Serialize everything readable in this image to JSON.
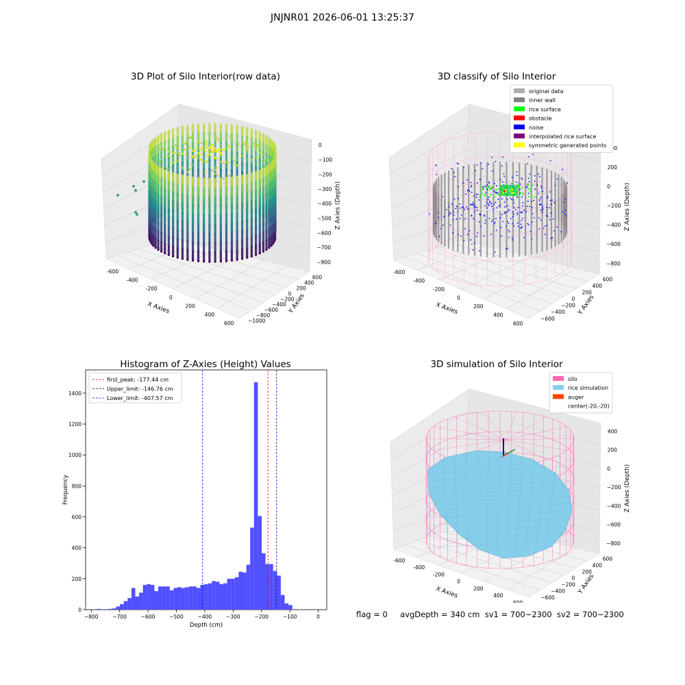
{
  "suptitle": "JNJNR01 2026-06-01 13:25:37",
  "chart_data": [
    {
      "type": "scatter",
      "title": "3D Plot of Silo Interior(row data)",
      "xlabel": "X Axies",
      "ylabel": "Y Axies",
      "zlabel": "Z Axies (Depth)",
      "x_ticks": [
        "-600",
        "-400",
        "-200",
        "0",
        "200",
        "400",
        "600"
      ],
      "y_ticks": [
        "600",
        "400",
        "200",
        "0",
        "−200",
        "−400",
        "−600",
        "−800",
        "−1000"
      ],
      "z_ticks": [
        "0",
        "−100",
        "−200",
        "−300",
        "−400",
        "−500",
        "−600",
        "−700",
        "−800"
      ],
      "xlim": [
        -700,
        600
      ],
      "ylim": [
        -1000,
        600
      ],
      "zlim": [
        -850,
        50
      ],
      "colormap": "viridis",
      "silo": {
        "cx": 0,
        "cy": -150,
        "radius": 560,
        "z_top": -170,
        "z_bottom": -800
      }
    },
    {
      "type": "scatter",
      "title": "3D classify of Silo Interior",
      "xlabel": "X Axies",
      "ylabel": "Y Axies",
      "zlabel": "Z Axies (Depth)",
      "x_ticks": [
        "-600",
        "-400",
        "-200",
        "0",
        "200",
        "400",
        "600"
      ],
      "y_ticks": [
        "600",
        "400",
        "200",
        "0",
        "−200",
        "−400",
        "−600"
      ],
      "z_ticks": [
        "400",
        "200",
        "0",
        "−200",
        "−400",
        "−600",
        "−800"
      ],
      "xlim": [
        -700,
        600
      ],
      "ylim": [
        -700,
        700
      ],
      "zlim": [
        -900,
        450
      ],
      "legend": [
        {
          "label": "original data",
          "color": "#b0b0b0"
        },
        {
          "label": "inner wall",
          "color": "#808080"
        },
        {
          "label": "rice surface",
          "color": "#00ff00"
        },
        {
          "label": "obstacle",
          "color": "#ff0000"
        },
        {
          "label": "noise",
          "color": "#0000ff"
        },
        {
          "label": "interpolated rice surface",
          "color": "#800080"
        },
        {
          "label": "symmetric generated points",
          "color": "#ffff00"
        }
      ],
      "legend_loc": "upper right"
    },
    {
      "type": "histogram",
      "title": "Histogram of Z-Axies (Height) Values",
      "xlabel": "Depth (cm)",
      "ylabel": "Frequency",
      "bar_color": "#5050ff",
      "xlim": [
        -820,
        30
      ],
      "ylim": [
        0,
        1550
      ],
      "x_ticks": [
        -800,
        -700,
        -600,
        -500,
        -400,
        -300,
        -200,
        -100,
        0
      ],
      "y_ticks": [
        0,
        200,
        400,
        600,
        800,
        1000,
        1200,
        1400
      ],
      "bin_start": -780,
      "bin_width": 13.5,
      "counts": [
        5,
        3,
        0,
        5,
        8,
        20,
        35,
        55,
        75,
        140,
        85,
        110,
        160,
        165,
        160,
        120,
        150,
        150,
        150,
        125,
        140,
        145,
        140,
        145,
        150,
        150,
        140,
        160,
        165,
        170,
        185,
        180,
        165,
        170,
        200,
        200,
        210,
        245,
        240,
        290,
        530,
        1470,
        605,
        365,
        295,
        295,
        250,
        220,
        95,
        40,
        30
      ],
      "lines": [
        {
          "label": "first_peak: -177.44 cm",
          "value": -177.44,
          "color": "#ff0000"
        },
        {
          "label": "Upper_limit: -146.76 cm",
          "value": -146.76,
          "color": "#00008b"
        },
        {
          "label": "Lower_limit: -407.57 cm",
          "value": -407.57,
          "color": "#0000ff"
        }
      ],
      "legend_loc": "upper left"
    },
    {
      "type": "surface",
      "title": "3D simulation of Silo Interior",
      "xlabel": "X Axies",
      "ylabel": "Y Axies",
      "zlabel": "Z Axies (Depth)",
      "x_ticks": [
        "-600",
        "-400",
        "-200",
        "0",
        "200",
        "400",
        "600"
      ],
      "y_ticks": [
        "600",
        "400",
        "200",
        "0",
        "−200",
        "−400",
        "−600"
      ],
      "z_ticks": [
        "400",
        "200",
        "0",
        "−200",
        "−400",
        "−600",
        "−800"
      ],
      "xlim": [
        -700,
        600
      ],
      "ylim": [
        -700,
        700
      ],
      "zlim": [
        -900,
        450
      ],
      "legend": [
        {
          "label": "silo",
          "color": "#ff69b4"
        },
        {
          "label": "rice simulation",
          "color": "#87ceeb"
        },
        {
          "label": "auger",
          "color": "#ff4500"
        },
        {
          "label": "center(-20,-20)",
          "color": ""
        }
      ],
      "legend_loc": "upper right"
    }
  ],
  "footer": {
    "flag": "flag = 0",
    "avg": "avgDepth = 340 cm",
    "sv1": "sv1 = 700~2300",
    "sv2": "sv2 = 700~2300"
  }
}
